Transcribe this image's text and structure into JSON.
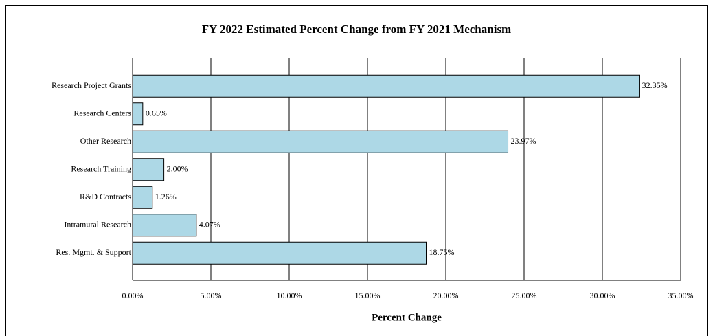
{
  "chart_data": {
    "type": "bar",
    "orientation": "horizontal",
    "title": "FY 2022 Estimated Percent Change from FY 2021 Mechanism",
    "x_label": "Percent Change",
    "categories": [
      "Research Project Grants",
      "Research Centers",
      "Other Research",
      "Research Training",
      "R&D Contracts",
      "Intramural Research",
      "Res. Mgmt. & Support"
    ],
    "values": [
      32.35,
      0.65,
      23.97,
      2.0,
      1.26,
      4.07,
      18.75
    ],
    "value_labels": [
      "32.35%",
      "0.65%",
      "23.97%",
      "2.00%",
      "1.26%",
      "4.07%",
      "18.75%"
    ],
    "color": "#add8e6",
    "xlim": [
      0,
      35
    ],
    "xticks": [
      {
        "value": 0,
        "label": "0.00%"
      },
      {
        "value": 5,
        "label": "5.00%"
      },
      {
        "value": 10,
        "label": "10.00%"
      },
      {
        "value": 15,
        "label": "15.00%"
      },
      {
        "value": 20,
        "label": "20.00%"
      },
      {
        "value": 25,
        "label": "25.00%"
      },
      {
        "value": 30,
        "label": "30.00%"
      },
      {
        "value": 35,
        "label": "35.00%"
      }
    ],
    "grid": true
  }
}
